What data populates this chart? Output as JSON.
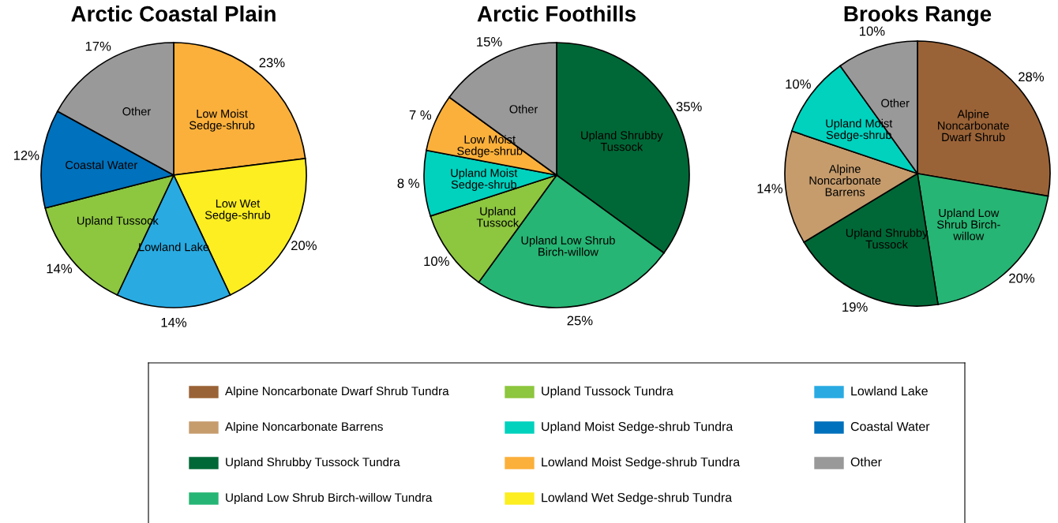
{
  "chart_data": [
    {
      "type": "pie",
      "title": "Arctic Coastal Plain",
      "categories": [
        "Low Moist\nSedge-shrub",
        "Low Wet\nSedge-shrub",
        "Lowland Lake",
        "Upland Tussock",
        "Coastal Water",
        "Other"
      ],
      "values": [
        23,
        20,
        14,
        14,
        12,
        17
      ],
      "value_labels": [
        "23%",
        "20%",
        "14%",
        "14%",
        "12%",
        "17%"
      ],
      "colors": [
        "#fbb03b",
        "#fcee21",
        "#29abe2",
        "#8dc63f",
        "#0071bc",
        "#999999"
      ]
    },
    {
      "type": "pie",
      "title": "Arctic Foothills",
      "categories": [
        "Upland Shrubby\nTussock",
        "Upland Low Shrub\nBirch-willow",
        "Upland\nTussock",
        "Upland Moist\nSedge-shrub",
        "Low Moist\nSedge-shrub",
        "Other"
      ],
      "values": [
        35,
        25,
        10,
        8,
        7,
        15
      ],
      "value_labels": [
        "35%",
        "25%",
        "10%",
        "8 %",
        "7 %",
        "15%"
      ],
      "colors": [
        "#006837",
        "#26b574",
        "#8dc63f",
        "#00d2be",
        "#fbb03b",
        "#999999"
      ]
    },
    {
      "type": "pie",
      "title": "Brooks Range",
      "categories": [
        "Alpine\nNoncarbonate\nDwarf Shrub",
        "Upland Low\nShrub Birch-\nwillow",
        "Upland Shrubby\nTussock",
        "Alpine\nNoncarbonate\nBarrens",
        "Upland Moist\nSedge-shrub",
        "Other"
      ],
      "values": [
        28,
        20,
        19,
        14,
        10,
        10
      ],
      "value_labels": [
        "28%",
        "20%",
        "19%",
        "14%",
        "10%",
        "10%"
      ],
      "colors": [
        "#9a6337",
        "#26b574",
        "#006837",
        "#c69c6d",
        "#00d2be",
        "#999999"
      ]
    },
    {
      "type": "other",
      "categories": [
        "Alpine Noncarbonate Dwarf Shrub Tundra",
        "Alpine Noncarbonate Barrens",
        "Upland Shrubby Tussock Tundra",
        "Upland Low Shrub Birch-willow Tundra",
        "Upland Tussock Tundra",
        "Upland Moist Sedge-shrub Tundra",
        "Lowland Moist Sedge-shrub Tundra",
        "Lowland Wet Sedge-shrub Tundra",
        "Lowland Lake",
        "Coastal Water",
        "Other"
      ],
      "colors": [
        "#9a6337",
        "#c69c6d",
        "#006837",
        "#26b574",
        "#8dc63f",
        "#00d2be",
        "#fbb03b",
        "#fcee21",
        "#29abe2",
        "#0071bc",
        "#999999"
      ]
    }
  ]
}
